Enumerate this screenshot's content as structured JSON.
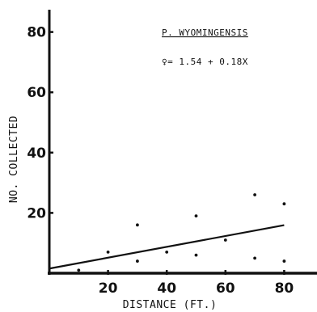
{
  "chart_data": {
    "type": "scatter",
    "title": "P. WYOMINGENSIS",
    "equation": "♀= 1.54 + 0.18X",
    "xlabel": "DISTANCE (FT.)",
    "ylabel": "NO. COLLECTED",
    "xlim": [
      0,
      85
    ],
    "ylim": [
      0,
      90
    ],
    "x_ticks": [
      20,
      40,
      60,
      80
    ],
    "x_tick_labels": [
      "20",
      "40",
      "60",
      "80"
    ],
    "y_ticks": [
      20,
      40,
      60,
      80
    ],
    "y_tick_labels": [
      "20",
      "40",
      "60",
      "80"
    ],
    "grid": false,
    "series": [
      {
        "points": [
          {
            "x": 10,
            "y": 1
          },
          {
            "x": 20,
            "y": 7
          },
          {
            "x": 30,
            "y": 16
          },
          {
            "x": 30,
            "y": 4
          },
          {
            "x": 40,
            "y": 7
          },
          {
            "x": 40,
            "y": 0
          },
          {
            "x": 50,
            "y": 19
          },
          {
            "x": 50,
            "y": 6
          },
          {
            "x": 60,
            "y": 11
          },
          {
            "x": 70,
            "y": 26
          },
          {
            "x": 70,
            "y": 5
          },
          {
            "x": 80,
            "y": 23
          },
          {
            "x": 80,
            "y": 4
          }
        ]
      }
    ],
    "regression": {
      "intercept": 1.54,
      "slope": 0.18,
      "x_range": [
        0,
        80
      ]
    }
  }
}
